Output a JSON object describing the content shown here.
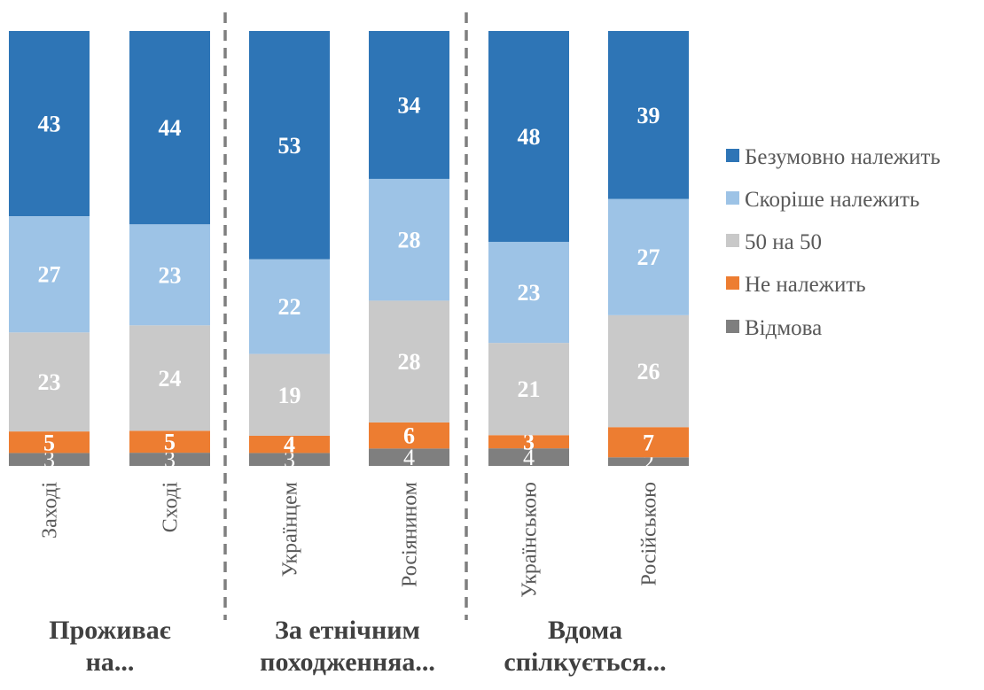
{
  "chart_data": {
    "type": "bar",
    "stacked": true,
    "orientation": "vertical",
    "percent_stacked": true,
    "title": "",
    "xlabel": "",
    "ylabel": "",
    "ylim": [
      0,
      100
    ],
    "grid": false,
    "legend_position": "right",
    "categories": [
      "Заході",
      "Сході",
      "Українцем",
      "Росіянином",
      "Українською",
      "Російською"
    ],
    "groups": [
      {
        "label_line1": "Проживає",
        "label_line2": "на...",
        "categories": [
          "Заході",
          "Сході"
        ]
      },
      {
        "label_line1": "За етнічним",
        "label_line2": "походженняа...",
        "categories": [
          "Українцем",
          "Росіянином"
        ]
      },
      {
        "label_line1": "Вдома",
        "label_line2": "спілкується...",
        "categories": [
          "Українською",
          "Російською"
        ]
      }
    ],
    "series": [
      {
        "name": "Безумовно належить",
        "color": "#2E75B6",
        "values": [
          43,
          44,
          53,
          34,
          48,
          39
        ]
      },
      {
        "name": "Скоріше належить",
        "color": "#9DC3E6",
        "values": [
          27,
          23,
          22,
          28,
          23,
          27
        ]
      },
      {
        "name": "50 на 50",
        "color": "#C9C9C9",
        "values": [
          23,
          24,
          19,
          28,
          21,
          26
        ]
      },
      {
        "name": "Не належить",
        "color": "#ED7D31",
        "values": [
          5,
          5,
          4,
          6,
          3,
          7
        ]
      },
      {
        "name": "Відмова",
        "color": "#7F7F7F",
        "values": [
          3,
          3,
          3,
          4,
          4,
          2
        ]
      }
    ],
    "separator_color": "#7F7F7F"
  }
}
